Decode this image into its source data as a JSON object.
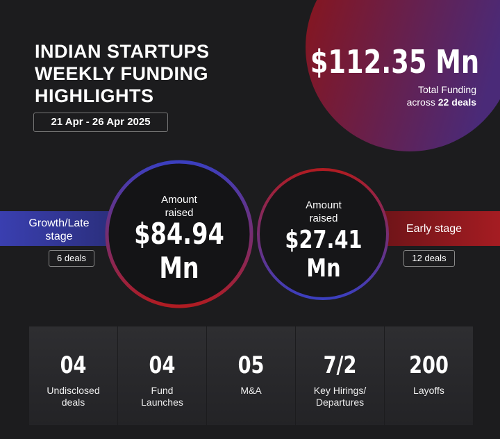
{
  "header": {
    "title": [
      "INDIAN STARTUPS",
      "WEEKLY FUNDING",
      "HIGHLIGHTS"
    ],
    "date": "21 Apr - 26 Apr 2025"
  },
  "total": {
    "amount": "$112.35 Mn",
    "label": "Total Funding",
    "across": "across",
    "deals": "22 deals"
  },
  "growth": {
    "label": [
      "Growth/Late",
      "stage"
    ],
    "deals": "6 deals",
    "amount_label": [
      "Amount",
      "raised"
    ],
    "amount": "$84.94 Mn"
  },
  "early": {
    "label": "Early stage",
    "deals": "12 deals",
    "amount_label": [
      "Amount",
      "raised"
    ],
    "amount": "$27.41 Mn"
  },
  "stats": [
    {
      "value": "04",
      "label": [
        "Undisclosed",
        "deals"
      ]
    },
    {
      "value": "04",
      "label": [
        "Fund",
        "Launches"
      ]
    },
    {
      "value": "05",
      "label": [
        "M&A"
      ]
    },
    {
      "value": "7/2",
      "label": [
        "Key Hirings/",
        "Departures"
      ]
    },
    {
      "value": "200",
      "label": [
        "Layoffs"
      ]
    }
  ]
}
